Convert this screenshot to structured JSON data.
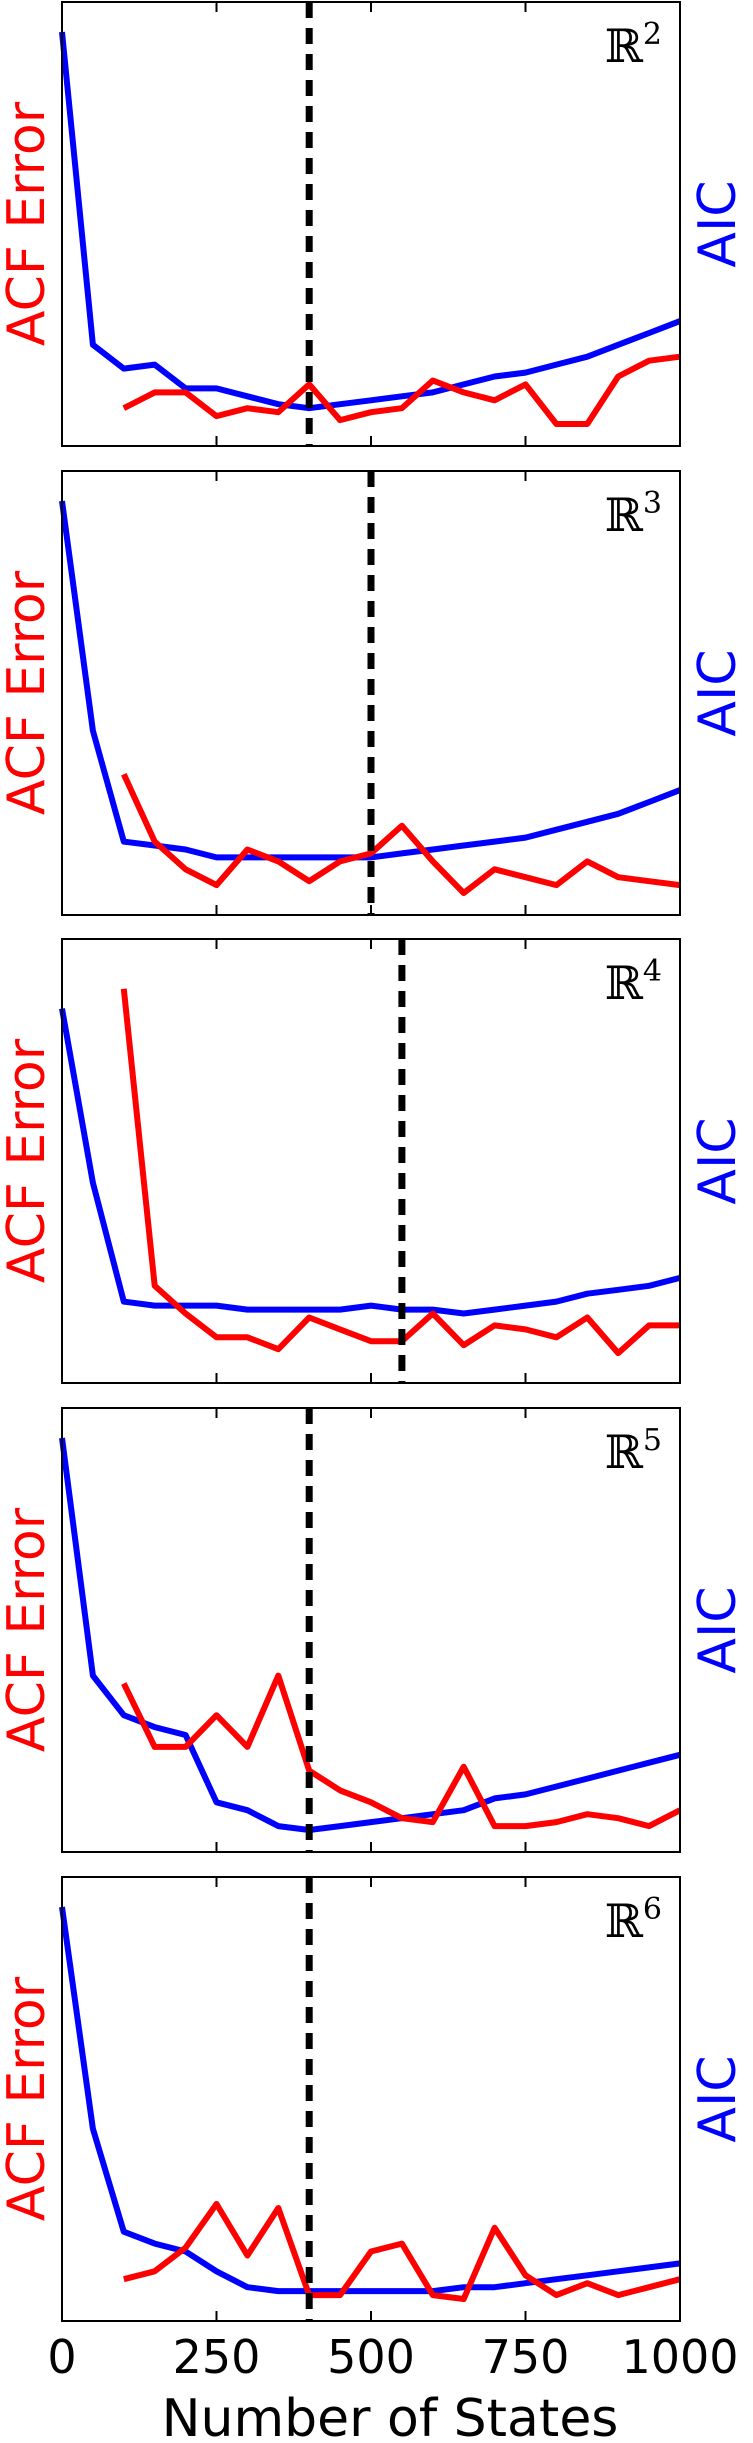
{
  "chart_data": {
    "type": "line",
    "xlabel": "Number of States",
    "ylabel_left": "ACF Error",
    "ylabel_right": "AIC",
    "xlim": [
      0,
      1000
    ],
    "x_ticks": [
      "0",
      "250",
      "500",
      "750",
      "1000"
    ],
    "x_tick_values": [
      0,
      250,
      500,
      750,
      1000
    ],
    "colors": {
      "acf": "#ff0000",
      "aic": "#0000ff",
      "marker": "#000000"
    },
    "panels": [
      {
        "label": "ℝ",
        "sup": "2",
        "marker_x": 400,
        "acf": {
          "x": [
            100,
            150,
            200,
            250,
            300,
            350,
            400,
            450,
            500,
            550,
            600,
            650,
            700,
            750,
            800,
            850,
            900,
            950,
            1000
          ],
          "y": [
            0.05,
            0.09,
            0.09,
            0.03,
            0.05,
            0.04,
            0.11,
            0.02,
            0.04,
            0.05,
            0.12,
            0.09,
            0.07,
            0.11,
            0.01,
            0.01,
            0.13,
            0.17,
            0.18
          ]
        },
        "aic": {
          "x": [
            0,
            50,
            100,
            150,
            200,
            250,
            300,
            350,
            400,
            450,
            500,
            550,
            600,
            650,
            700,
            750,
            800,
            850,
            900,
            950,
            1000
          ],
          "y": [
            1.0,
            0.21,
            0.15,
            0.16,
            0.1,
            0.1,
            0.08,
            0.06,
            0.05,
            0.06,
            0.07,
            0.08,
            0.09,
            0.11,
            0.13,
            0.14,
            0.16,
            0.18,
            0.21,
            0.24,
            0.27
          ]
        }
      },
      {
        "label": "ℝ",
        "sup": "3",
        "marker_x": 500,
        "acf": {
          "x": [
            100,
            150,
            200,
            250,
            300,
            350,
            400,
            450,
            500,
            550,
            600,
            650,
            700,
            750,
            800,
            850,
            900,
            950,
            1000
          ],
          "y": [
            0.31,
            0.14,
            0.07,
            0.03,
            0.12,
            0.09,
            0.04,
            0.09,
            0.11,
            0.18,
            0.09,
            0.01,
            0.07,
            0.05,
            0.03,
            0.09,
            0.05,
            0.04,
            0.03
          ]
        },
        "aic": {
          "x": [
            0,
            50,
            100,
            150,
            200,
            250,
            300,
            350,
            400,
            450,
            500,
            550,
            600,
            650,
            700,
            750,
            800,
            850,
            900,
            950,
            1000
          ],
          "y": [
            1.0,
            0.42,
            0.14,
            0.13,
            0.12,
            0.1,
            0.1,
            0.1,
            0.1,
            0.1,
            0.1,
            0.11,
            0.12,
            0.13,
            0.14,
            0.15,
            0.17,
            0.19,
            0.21,
            0.24,
            0.27
          ]
        }
      },
      {
        "label": "ℝ",
        "sup": "4",
        "marker_x": 550,
        "acf": {
          "x": [
            100,
            150,
            200,
            250,
            300,
            350,
            400,
            450,
            500,
            550,
            600,
            650,
            700,
            750,
            800,
            850,
            900,
            950,
            1000
          ],
          "y": [
            0.95,
            0.2,
            0.13,
            0.07,
            0.07,
            0.04,
            0.12,
            0.09,
            0.06,
            0.06,
            0.13,
            0.05,
            0.1,
            0.09,
            0.07,
            0.12,
            0.03,
            0.1,
            0.1
          ]
        },
        "aic": {
          "x": [
            0,
            50,
            100,
            150,
            200,
            250,
            300,
            350,
            400,
            450,
            500,
            550,
            600,
            650,
            700,
            750,
            800,
            850,
            900,
            950,
            1000
          ],
          "y": [
            0.9,
            0.46,
            0.16,
            0.15,
            0.15,
            0.15,
            0.14,
            0.14,
            0.14,
            0.14,
            0.15,
            0.14,
            0.14,
            0.13,
            0.14,
            0.15,
            0.16,
            0.18,
            0.19,
            0.2,
            0.22
          ]
        }
      },
      {
        "label": "ℝ",
        "sup": "5",
        "marker_x": 400,
        "acf": {
          "x": [
            100,
            150,
            200,
            250,
            300,
            350,
            400,
            450,
            500,
            550,
            600,
            650,
            700,
            750,
            800,
            850,
            900,
            950,
            1000
          ],
          "y": [
            0.38,
            0.22,
            0.22,
            0.3,
            0.22,
            0.4,
            0.16,
            0.11,
            0.08,
            0.04,
            0.03,
            0.17,
            0.02,
            0.02,
            0.03,
            0.05,
            0.04,
            0.02,
            0.06
          ]
        },
        "aic": {
          "x": [
            0,
            50,
            100,
            150,
            200,
            250,
            300,
            350,
            400,
            450,
            500,
            550,
            600,
            650,
            700,
            750,
            800,
            850,
            900,
            950,
            1000
          ],
          "y": [
            1.0,
            0.4,
            0.3,
            0.27,
            0.25,
            0.08,
            0.06,
            0.02,
            0.01,
            0.02,
            0.03,
            0.04,
            0.05,
            0.06,
            0.09,
            0.1,
            0.12,
            0.14,
            0.16,
            0.18,
            0.2
          ]
        }
      },
      {
        "label": "ℝ",
        "sup": "6",
        "marker_x": 400,
        "acf": {
          "x": [
            100,
            150,
            200,
            250,
            300,
            350,
            400,
            450,
            500,
            550,
            600,
            650,
            700,
            750,
            800,
            850,
            900,
            950,
            1000
          ],
          "y": [
            0.06,
            0.08,
            0.14,
            0.25,
            0.12,
            0.24,
            0.02,
            0.02,
            0.13,
            0.15,
            0.02,
            0.01,
            0.19,
            0.07,
            0.02,
            0.05,
            0.02,
            0.04,
            0.06
          ]
        },
        "aic": {
          "x": [
            0,
            50,
            100,
            150,
            200,
            250,
            300,
            350,
            400,
            450,
            500,
            550,
            600,
            650,
            700,
            750,
            800,
            850,
            900,
            950,
            1000
          ],
          "y": [
            1.0,
            0.44,
            0.18,
            0.15,
            0.13,
            0.08,
            0.04,
            0.03,
            0.03,
            0.03,
            0.03,
            0.03,
            0.03,
            0.04,
            0.04,
            0.05,
            0.06,
            0.07,
            0.08,
            0.09,
            0.1
          ]
        }
      }
    ]
  }
}
